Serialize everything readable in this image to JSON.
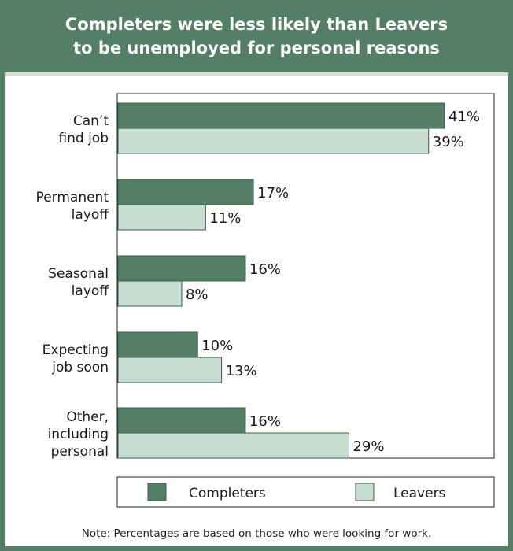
{
  "colors": {
    "completers": "#547e66",
    "leavers": "#c8ddd1",
    "frame": "#547e66",
    "bar_outline": "#3d5e4b"
  },
  "title": {
    "line1": "Completers were less likely than Leavers",
    "line2": "to be unemployed for personal reasons"
  },
  "note": "Note: Percentages are based on those who were looking for work.",
  "chart_data": {
    "type": "bar",
    "orientation": "horizontal",
    "title": "Completers were less likely than Leavers to be unemployed for personal reasons",
    "categories": [
      [
        "Can’t",
        "find job"
      ],
      [
        "Permanent",
        "layoff"
      ],
      [
        "Seasonal",
        "layoff"
      ],
      [
        "Expecting",
        "job soon"
      ],
      [
        "Other,",
        "including",
        "personal"
      ]
    ],
    "series": [
      {
        "name": "Completers",
        "values": [
          41,
          17,
          16,
          10,
          16
        ]
      },
      {
        "name": "Leavers",
        "values": [
          39,
          11,
          8,
          13,
          29
        ]
      }
    ],
    "value_suffix": "%",
    "xlim": [
      0,
      42
    ],
    "grid": false,
    "legend": "bottom"
  }
}
